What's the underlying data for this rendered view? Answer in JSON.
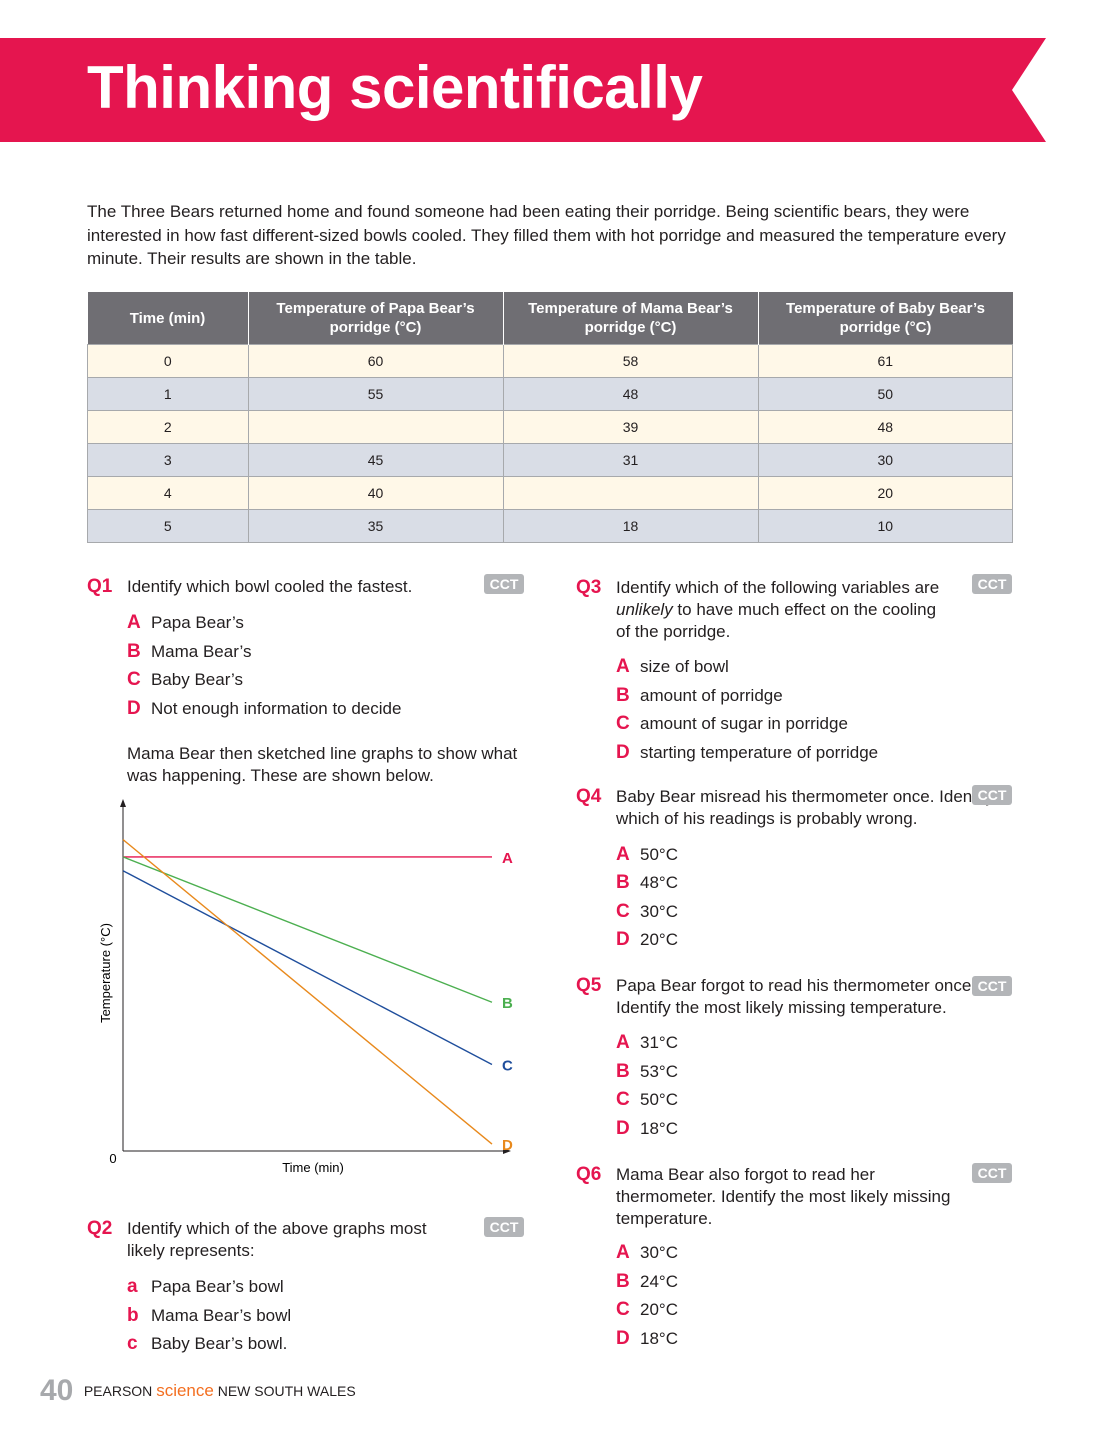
{
  "banner": {
    "title": "Thinking scientifically",
    "color": "#e5154f"
  },
  "intro": "The Three Bears returned home and found someone had been eating their porridge. Being scientific bears, they were interested in how fast different-sized bowls cooled. They filled them with hot porridge and measured the temperature every minute. Their results are shown in the table.",
  "table": {
    "headers": [
      "Time (min)",
      "Temperature of Papa Bear’s porridge (°C)",
      "Temperature of Mama Bear’s porridge (°C)",
      "Temperature of Baby Bear’s porridge (°C)"
    ],
    "rows": [
      [
        "0",
        "60",
        "58",
        "61"
      ],
      [
        "1",
        "55",
        "48",
        "50"
      ],
      [
        "2",
        "",
        "39",
        "48"
      ],
      [
        "3",
        "45",
        "31",
        "30"
      ],
      [
        "4",
        "40",
        "",
        "20"
      ],
      [
        "5",
        "35",
        "18",
        "10"
      ]
    ]
  },
  "cct_label": "CCT",
  "q1": {
    "num": "Q1",
    "text": "Identify which bowl cooled the fastest.",
    "options": [
      [
        "A",
        "Papa Bear’s"
      ],
      [
        "B",
        "Mama Bear’s"
      ],
      [
        "C",
        "Baby Bear’s"
      ],
      [
        "D",
        "Not enough information to decide"
      ]
    ]
  },
  "graph_intro": "Mama Bear then sketched line graphs to show what was happening. These are shown below.",
  "chart_data": {
    "type": "line",
    "xlabel": "Time (min)",
    "ylabel": "Temperature (°C)",
    "origin_label": "0",
    "series": [
      {
        "name": "A",
        "color": "#e5154f",
        "points": [
          [
            0,
            0.85
          ],
          [
            1,
            0.85
          ]
        ]
      },
      {
        "name": "B",
        "color": "#4caf50",
        "points": [
          [
            0,
            0.85
          ],
          [
            1,
            0.43
          ]
        ]
      },
      {
        "name": "C",
        "color": "#1f4e9c",
        "points": [
          [
            0,
            0.81
          ],
          [
            1,
            0.25
          ]
        ]
      },
      {
        "name": "D",
        "color": "#e8891c",
        "points": [
          [
            0,
            0.9
          ],
          [
            1,
            0.02
          ]
        ]
      }
    ]
  },
  "q2": {
    "num": "Q2",
    "text": "Identify which of the above graphs most likely represents:",
    "options": [
      [
        "a",
        "Papa Bear’s bowl"
      ],
      [
        "b",
        "Mama Bear’s bowl"
      ],
      [
        "c",
        "Baby Bear’s bowl."
      ]
    ]
  },
  "q3": {
    "num": "Q3",
    "text_before": "Identify which of the following variables are ",
    "text_em": "unlikely",
    "text_after": " to have much effect on the cooling of the porridge.",
    "options": [
      [
        "A",
        "size of bowl"
      ],
      [
        "B",
        "amount of porridge"
      ],
      [
        "C",
        "amount of sugar in porridge"
      ],
      [
        "D",
        "starting temperature of porridge"
      ]
    ]
  },
  "q4": {
    "num": "Q4",
    "text": "Baby Bear misread his thermometer once. Identify which of his readings is probably wrong.",
    "options": [
      [
        "A",
        "50°C"
      ],
      [
        "B",
        "48°C"
      ],
      [
        "C",
        "30°C"
      ],
      [
        "D",
        "20°C"
      ]
    ]
  },
  "q5": {
    "num": "Q5",
    "text": "Papa Bear forgot to read his thermometer once. Identify the most likely missing temperature.",
    "options": [
      [
        "A",
        "31°C"
      ],
      [
        "B",
        "53°C"
      ],
      [
        "C",
        "50°C"
      ],
      [
        "D",
        "18°C"
      ]
    ]
  },
  "q6": {
    "num": "Q6",
    "text": "Mama Bear also forgot to read her thermometer. Identify the most likely missing temperature.",
    "options": [
      [
        "A",
        "30°C"
      ],
      [
        "B",
        "24°C"
      ],
      [
        "C",
        "20°C"
      ],
      [
        "D",
        "18°C"
      ]
    ]
  },
  "footer": {
    "page": "40",
    "brand1": "PEARSON",
    "brand2": "science",
    "brand3": "NEW SOUTH WALES"
  }
}
